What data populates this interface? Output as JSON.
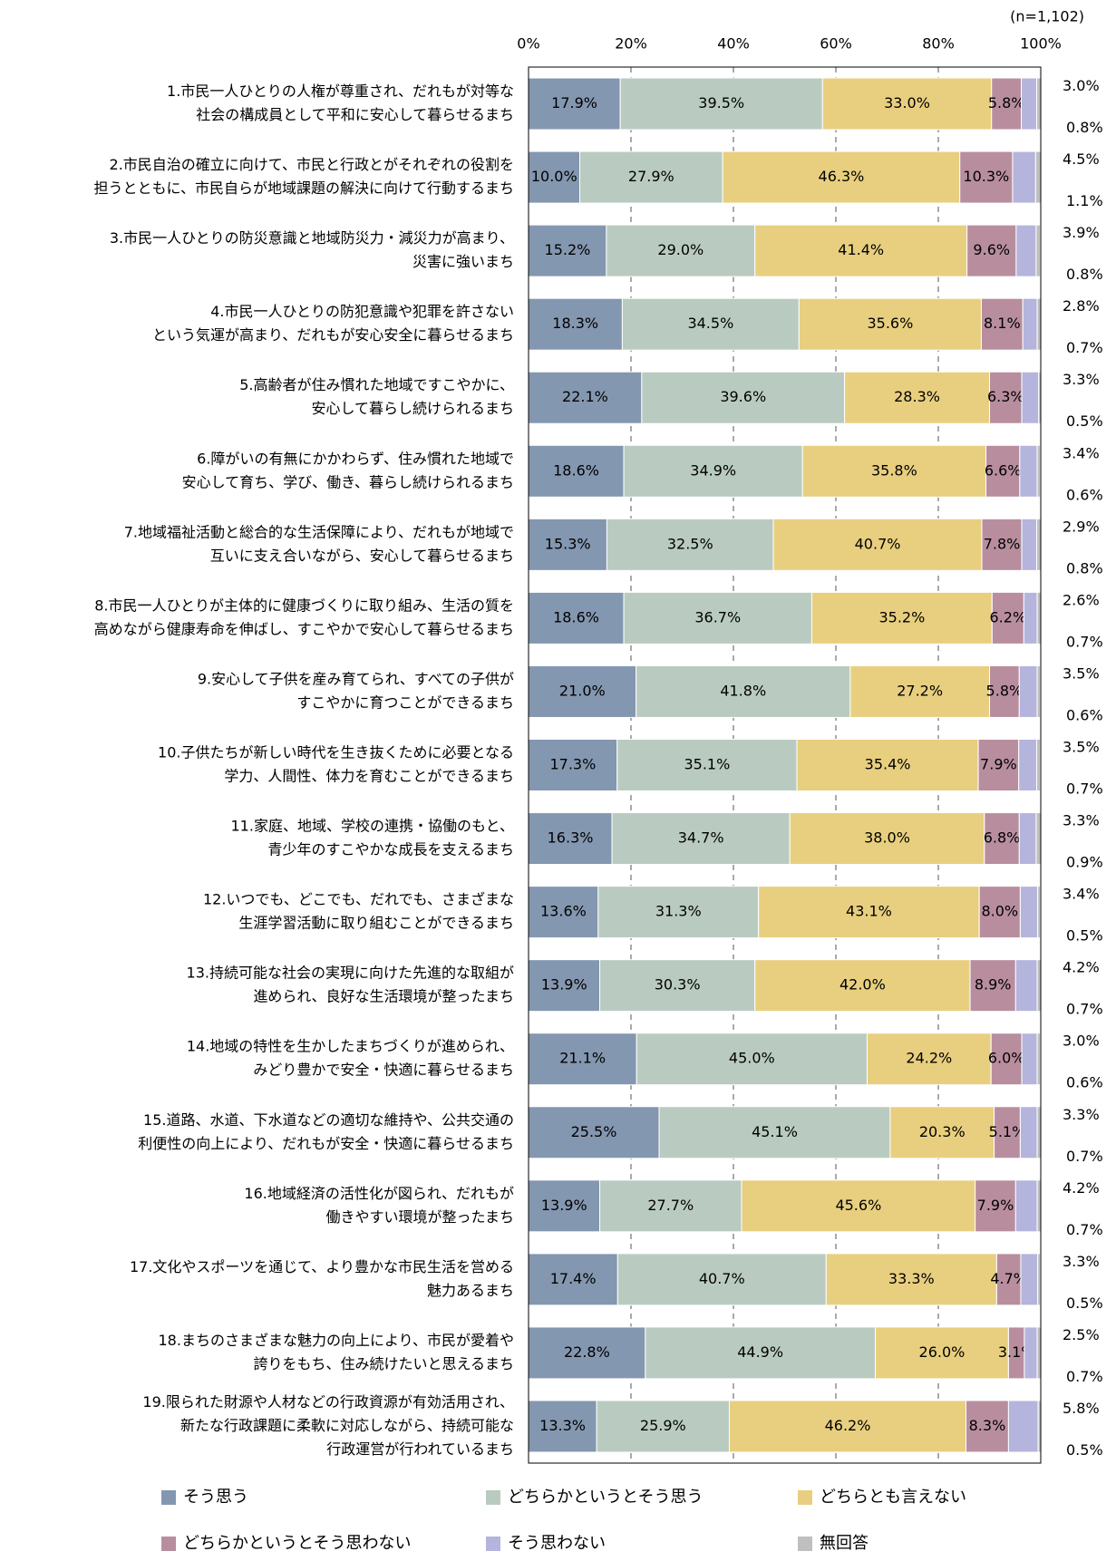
{
  "chart_data": {
    "type": "stacked_bar_horizontal",
    "note_n": "(n=1,102)",
    "categories": [
      [
        "1.市民一人ひとりの人権が尊重され、だれもが対等な",
        "社会の構成員として平和に安心して暮らせるまち"
      ],
      [
        "2.市民自治の確立に向けて、市民と行政とがそれぞれの役割を",
        "担うとともに、市民自らが地域課題の解決に向けて行動するまち"
      ],
      [
        "3.市民一人ひとりの防災意識と地域防災力・減災力が高まり、",
        "災害に強いまち"
      ],
      [
        "4.市民一人ひとりの防犯意識や犯罪を許さない",
        "という気運が高まり、だれもが安心安全に暮らせるまち"
      ],
      [
        "5.高齢者が住み慣れた地域ですこやかに、",
        "安心して暮らし続けられるまち"
      ],
      [
        "6.障がいの有無にかかわらず、住み慣れた地域で",
        "安心して育ち、学び、働き、暮らし続けられるまち"
      ],
      [
        "7.地域福祉活動と総合的な生活保障により、だれもが地域で",
        "互いに支え合いながら、安心して暮らせるまち"
      ],
      [
        "8.市民一人ひとりが主体的に健康づくりに取り組み、生活の質を",
        "高めながら健康寿命を伸ばし、すこやかで安心して暮らせるまち"
      ],
      [
        "9.安心して子供を産み育てられ、すべての子供が",
        "すこやかに育つことができるまち"
      ],
      [
        "10.子供たちが新しい時代を生き抜くために必要となる",
        "学力、人間性、体力を育むことができるまち"
      ],
      [
        "11.家庭、地域、学校の連携・協働のもと、",
        "青少年のすこやかな成長を支えるまち"
      ],
      [
        "12.いつでも、どこでも、だれでも、さまざまな",
        "生涯学習活動に取り組むことができるまち"
      ],
      [
        "13.持続可能な社会の実現に向けた先進的な取組が",
        "進められ、良好な生活環境が整ったまち"
      ],
      [
        "14.地域の特性を生かしたまちづくりが進められ、",
        "みどり豊かで安全・快適に暮らせるまち"
      ],
      [
        "15.道路、水道、下水道などの適切な維持や、公共交通の",
        "利便性の向上により、だれもが安全・快適に暮らせるまち"
      ],
      [
        "16.地域経済の活性化が図られ、だれもが",
        "働きやすい環境が整ったまち"
      ],
      [
        "17.文化やスポーツを通じて、より豊かな市民生活を営める",
        "魅力あるまち"
      ],
      [
        "18.まちのさまざまな魅力の向上により、市民が愛着や",
        "誇りをもち、住み続けたいと思えるまち"
      ],
      [
        "19.限られた財源や人材などの行政資源が有効活用され、",
        "新たな行政課題に柔軟に対応しながら、持続可能な",
        "行政運営が行われているまち"
      ]
    ],
    "series": [
      {
        "name": "そう思う",
        "color": "#8497b0",
        "values": [
          17.9,
          10.0,
          15.2,
          18.3,
          22.1,
          18.6,
          15.3,
          18.6,
          21.0,
          17.3,
          16.3,
          13.6,
          13.9,
          21.1,
          25.5,
          13.9,
          17.4,
          22.8,
          13.3
        ],
        "value_labels": [
          "17.9%",
          "10.0%",
          "15.2%",
          "18.3%",
          "22.1%",
          "18.6%",
          "15.3%",
          "18.6%",
          "21.0%",
          "17.3%",
          "16.3%",
          "13.6%",
          "13.9%",
          "21.1%",
          "25.5%",
          "13.9%",
          "17.4%",
          "22.8%",
          "13.3%"
        ]
      },
      {
        "name": "どちらかというとそう思う",
        "color": "#b9cbc1",
        "values": [
          39.5,
          27.9,
          29.0,
          34.5,
          39.6,
          34.9,
          32.5,
          36.7,
          41.8,
          35.1,
          34.7,
          31.3,
          30.3,
          45.0,
          45.1,
          27.7,
          40.7,
          44.9,
          25.9
        ],
        "value_labels": [
          "39.5%",
          "27.9%",
          "29.0%",
          "34.5%",
          "39.6%",
          "34.9%",
          "32.5%",
          "36.7%",
          "41.8%",
          "35.1%",
          "34.7%",
          "31.3%",
          "30.3%",
          "45.0%",
          "45.1%",
          "27.7%",
          "40.7%",
          "44.9%",
          "25.9%"
        ]
      },
      {
        "name": "どちらとも言えない",
        "color": "#e8cf7f",
        "values": [
          33.0,
          46.3,
          41.4,
          35.6,
          28.3,
          35.8,
          40.7,
          35.2,
          27.2,
          35.4,
          38.0,
          43.1,
          42.0,
          24.2,
          20.3,
          45.6,
          33.3,
          26.0,
          46.2
        ],
        "value_labels": [
          "33.0%",
          "46.3%",
          "41.4%",
          "35.6%",
          "28.3%",
          "35.8%",
          "40.7%",
          "35.2%",
          "27.2%",
          "35.4%",
          "38.0%",
          "43.1%",
          "42.0%",
          "24.2%",
          "20.3%",
          "45.6%",
          "33.3%",
          "26.0%",
          "46.2%"
        ]
      },
      {
        "name": "どちらかというとそう思わない",
        "color": "#b88e9f",
        "values": [
          5.8,
          10.3,
          9.6,
          8.1,
          6.3,
          6.6,
          7.8,
          6.2,
          5.8,
          7.9,
          6.8,
          8.0,
          8.9,
          6.0,
          5.1,
          7.9,
          4.7,
          3.1,
          8.3
        ],
        "value_labels": [
          "5.8%",
          "10.3%",
          "9.6%",
          "8.1%",
          "6.3%",
          "6.6%",
          "7.8%",
          "6.2%",
          "5.8%",
          "7.9%",
          "6.8%",
          "8.0%",
          "8.9%",
          "6.0%",
          "5.1%",
          "7.9%",
          "4.7%",
          "3.1%",
          "8.3%"
        ]
      },
      {
        "name": "そう思わない",
        "color": "#b4b4dc",
        "values": [
          3.0,
          4.5,
          3.9,
          2.8,
          3.3,
          3.4,
          2.9,
          2.6,
          3.5,
          3.5,
          3.3,
          3.4,
          4.2,
          3.0,
          3.3,
          4.2,
          3.3,
          2.5,
          5.8
        ],
        "value_labels": [
          "3.0%",
          "4.5%",
          "3.9%",
          "2.8%",
          "3.3%",
          "3.4%",
          "2.9%",
          "2.6%",
          "3.5%",
          "3.5%",
          "3.3%",
          "3.4%",
          "4.2%",
          "3.0%",
          "3.3%",
          "4.2%",
          "3.3%",
          "2.5%",
          "5.8%"
        ]
      },
      {
        "name": "無回答",
        "color": "#bfbfbf",
        "values": [
          0.8,
          1.1,
          0.8,
          0.7,
          0.5,
          0.6,
          0.8,
          0.7,
          0.6,
          0.7,
          0.9,
          0.5,
          0.7,
          0.6,
          0.7,
          0.7,
          0.5,
          0.7,
          0.5
        ],
        "value_labels": [
          "0.8%",
          "1.1%",
          "0.8%",
          "0.7%",
          "0.5%",
          "0.6%",
          "0.8%",
          "0.7%",
          "0.6%",
          "0.7%",
          "0.9%",
          "0.5%",
          "0.7%",
          "0.6%",
          "0.7%",
          "0.7%",
          "0.5%",
          "0.7%",
          "0.5%"
        ]
      }
    ],
    "xlim": [
      0,
      100
    ],
    "xticks": [
      {
        "value": 0,
        "label": "0%"
      },
      {
        "value": 20,
        "label": "20%"
      },
      {
        "value": 40,
        "label": "40%"
      },
      {
        "value": 60,
        "label": "60%"
      },
      {
        "value": 80,
        "label": "80%"
      },
      {
        "value": 100,
        "label": "100%"
      }
    ],
    "grid": true,
    "legend": "bottom"
  }
}
